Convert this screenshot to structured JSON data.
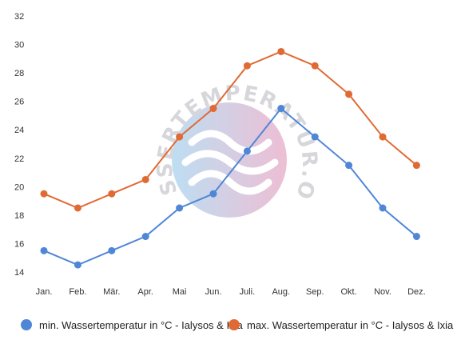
{
  "chart_data": {
    "type": "line",
    "categories": [
      "Jan.",
      "Feb.",
      "Mär.",
      "Apr.",
      "Mai",
      "Jun.",
      "Juli.",
      "Aug.",
      "Sep.",
      "Okt.",
      "Nov.",
      "Dez."
    ],
    "ylim": [
      14,
      32
    ],
    "yticks": [
      14,
      16,
      18,
      20,
      22,
      24,
      26,
      28,
      30,
      32
    ],
    "grid": false,
    "legend_position": "bottom",
    "title": "",
    "xlabel": "",
    "ylabel": "",
    "series": [
      {
        "name": "min. Wassertemperatur in °C - Ialysos & Ixia",
        "color": "#4f86d6",
        "values": [
          15.5,
          14.5,
          15.5,
          16.5,
          18.5,
          19.5,
          22.5,
          25.5,
          23.5,
          21.5,
          18.5,
          16.5
        ]
      },
      {
        "name": "max. Wassertemperatur in °C - Ialysos & Ixia",
        "color": "#e06a33",
        "values": [
          19.5,
          18.5,
          19.5,
          20.5,
          23.5,
          25.5,
          28.5,
          29.5,
          28.5,
          26.5,
          23.5,
          21.5
        ]
      }
    ]
  },
  "watermark": {
    "text": "WASSERTEMPERATUR.ORG",
    "colors": [
      "#a8d3ee",
      "#e8a9c6"
    ]
  }
}
